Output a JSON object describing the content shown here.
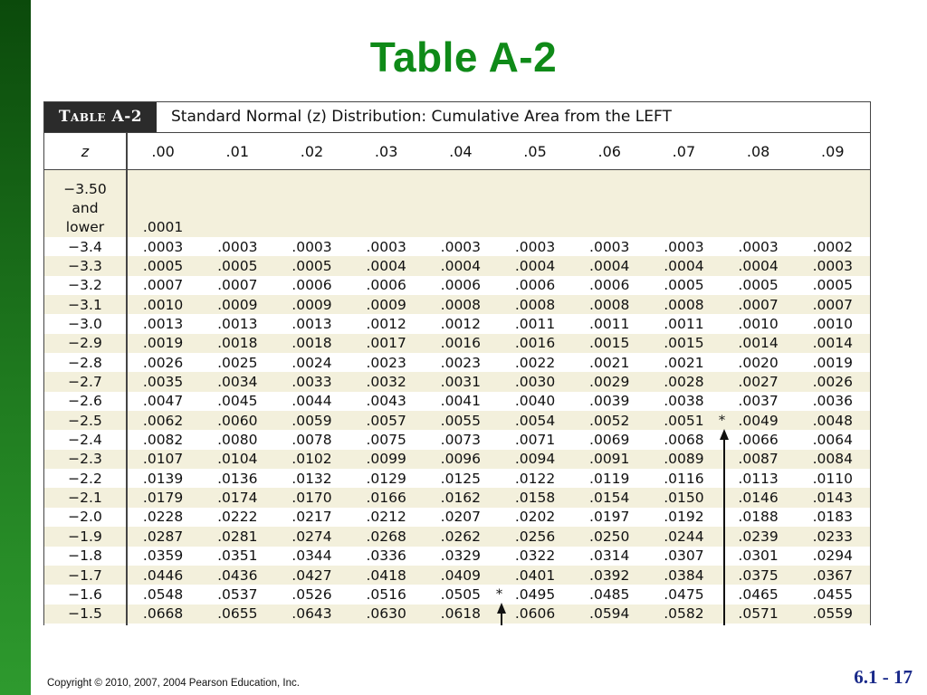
{
  "slide": {
    "title": "Table A-2",
    "copyright": "Copyright © 2010, 2007, 2004 Pearson Education, Inc.",
    "slide_number": "6.1 - 17"
  },
  "table": {
    "tag": "Table A-2",
    "caption": "Standard Normal (z) Distribution: Cumulative Area from the LEFT",
    "z_header": "z",
    "columns": [
      ".00",
      ".01",
      ".02",
      ".03",
      ".04",
      ".05",
      ".06",
      ".07",
      ".08",
      ".09"
    ],
    "first_row": {
      "z_line1": "−3.50",
      "z_line2": "and",
      "z_line3": "lower",
      "value": ".0001"
    },
    "rows": [
      {
        "z": "−3.4",
        "v": [
          ".0003",
          ".0003",
          ".0003",
          ".0003",
          ".0003",
          ".0003",
          ".0003",
          ".0003",
          ".0003",
          ".0002"
        ]
      },
      {
        "z": "−3.3",
        "v": [
          ".0005",
          ".0005",
          ".0005",
          ".0004",
          ".0004",
          ".0004",
          ".0004",
          ".0004",
          ".0004",
          ".0003"
        ]
      },
      {
        "z": "−3.2",
        "v": [
          ".0007",
          ".0007",
          ".0006",
          ".0006",
          ".0006",
          ".0006",
          ".0006",
          ".0005",
          ".0005",
          ".0005"
        ]
      },
      {
        "z": "−3.1",
        "v": [
          ".0010",
          ".0009",
          ".0009",
          ".0009",
          ".0008",
          ".0008",
          ".0008",
          ".0008",
          ".0007",
          ".0007"
        ]
      },
      {
        "z": "−3.0",
        "v": [
          ".0013",
          ".0013",
          ".0013",
          ".0012",
          ".0012",
          ".0011",
          ".0011",
          ".0011",
          ".0010",
          ".0010"
        ]
      },
      {
        "z": "−2.9",
        "v": [
          ".0019",
          ".0018",
          ".0018",
          ".0017",
          ".0016",
          ".0016",
          ".0015",
          ".0015",
          ".0014",
          ".0014"
        ]
      },
      {
        "z": "−2.8",
        "v": [
          ".0026",
          ".0025",
          ".0024",
          ".0023",
          ".0023",
          ".0022",
          ".0021",
          ".0021",
          ".0020",
          ".0019"
        ]
      },
      {
        "z": "−2.7",
        "v": [
          ".0035",
          ".0034",
          ".0033",
          ".0032",
          ".0031",
          ".0030",
          ".0029",
          ".0028",
          ".0027",
          ".0026"
        ]
      },
      {
        "z": "−2.6",
        "v": [
          ".0047",
          ".0045",
          ".0044",
          ".0043",
          ".0041",
          ".0040",
          ".0039",
          ".0038",
          ".0037",
          ".0036"
        ]
      },
      {
        "z": "−2.5",
        "v": [
          ".0062",
          ".0060",
          ".0059",
          ".0057",
          ".0055",
          ".0054",
          ".0052",
          ".0051",
          ".0049",
          ".0048"
        ]
      },
      {
        "z": "−2.4",
        "v": [
          ".0082",
          ".0080",
          ".0078",
          ".0075",
          ".0073",
          ".0071",
          ".0069",
          ".0068",
          ".0066",
          ".0064"
        ]
      },
      {
        "z": "−2.3",
        "v": [
          ".0107",
          ".0104",
          ".0102",
          ".0099",
          ".0096",
          ".0094",
          ".0091",
          ".0089",
          ".0087",
          ".0084"
        ]
      },
      {
        "z": "−2.2",
        "v": [
          ".0139",
          ".0136",
          ".0132",
          ".0129",
          ".0125",
          ".0122",
          ".0119",
          ".0116",
          ".0113",
          ".0110"
        ]
      },
      {
        "z": "−2.1",
        "v": [
          ".0179",
          ".0174",
          ".0170",
          ".0166",
          ".0162",
          ".0158",
          ".0154",
          ".0150",
          ".0146",
          ".0143"
        ]
      },
      {
        "z": "−2.0",
        "v": [
          ".0228",
          ".0222",
          ".0217",
          ".0212",
          ".0207",
          ".0202",
          ".0197",
          ".0192",
          ".0188",
          ".0183"
        ]
      },
      {
        "z": "−1.9",
        "v": [
          ".0287",
          ".0281",
          ".0274",
          ".0268",
          ".0262",
          ".0256",
          ".0250",
          ".0244",
          ".0239",
          ".0233"
        ]
      },
      {
        "z": "−1.8",
        "v": [
          ".0359",
          ".0351",
          ".0344",
          ".0336",
          ".0329",
          ".0322",
          ".0314",
          ".0307",
          ".0301",
          ".0294"
        ]
      },
      {
        "z": "−1.7",
        "v": [
          ".0446",
          ".0436",
          ".0427",
          ".0418",
          ".0409",
          ".0401",
          ".0392",
          ".0384",
          ".0375",
          ".0367"
        ]
      },
      {
        "z": "−1.6",
        "v": [
          ".0548",
          ".0537",
          ".0526",
          ".0516",
          ".0505",
          ".0495",
          ".0485",
          ".0475",
          ".0465",
          ".0455"
        ]
      },
      {
        "z": "−1.5",
        "v": [
          ".0668",
          ".0655",
          ".0643",
          ".0630",
          ".0618",
          ".0606",
          ".0594",
          ".0582",
          ".0571",
          ".0559"
        ]
      }
    ],
    "asterisk": "*"
  },
  "colors": {
    "title_green": "#0f8a18",
    "row_shade": "#f3f0dc",
    "slide_number_blue": "#1a2a8a"
  }
}
